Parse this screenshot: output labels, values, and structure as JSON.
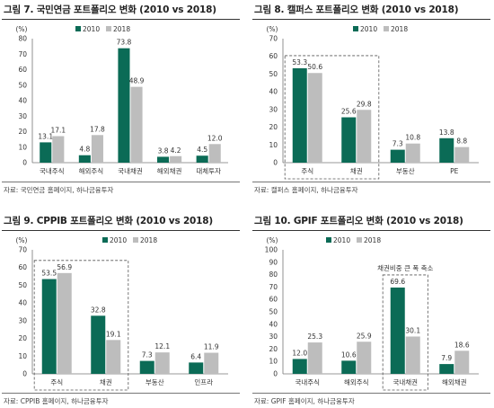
{
  "colors": {
    "s2010": "#0b6b56",
    "s2018": "#bdbdbd"
  },
  "chart_data": [
    {
      "type": "bar",
      "title": "그림 7. 국민연금 포트폴리오 변화 (2010 vs 2018)",
      "unit": "(%)",
      "source": "자료: 국민연금 홈페이지, 하나금융투자",
      "categories": [
        "국내주식",
        "해외주식",
        "국내채권",
        "해외채권",
        "대체투자"
      ],
      "ylim": [
        0,
        80
      ],
      "yticks": [
        0,
        10,
        20,
        30,
        40,
        50,
        60,
        70,
        80
      ],
      "series": [
        {
          "name": "2010",
          "values": [
            13.1,
            4.8,
            73.8,
            3.8,
            4.5
          ],
          "labels": [
            "13.1",
            "4.8",
            "73.8",
            "3.8",
            "4.5"
          ]
        },
        {
          "name": "2018",
          "values": [
            17.1,
            17.8,
            48.9,
            4.2,
            12.0
          ],
          "labels": [
            "17.1",
            "17.8",
            "48.9",
            "4.2",
            "12.0"
          ]
        }
      ],
      "legend_position": "top-center"
    },
    {
      "type": "bar",
      "title": "그림 8. 캘퍼스 포트폴리오 변화 (2010 vs 2018)",
      "unit": "(%)",
      "source": "자료: 캘퍼스 홈페이지, 하나금융투자",
      "categories": [
        "주식",
        "채권",
        "부동산",
        "PE"
      ],
      "ylim": [
        0,
        70
      ],
      "yticks": [
        0,
        10,
        20,
        30,
        40,
        50,
        60,
        70
      ],
      "series": [
        {
          "name": "2010",
          "values": [
            53.3,
            25.6,
            7.3,
            13.8
          ],
          "labels": [
            "53.3",
            "25.6",
            "7.3",
            "13.8"
          ]
        },
        {
          "name": "2018",
          "values": [
            50.6,
            29.8,
            10.8,
            8.8
          ],
          "labels": [
            "50.6",
            "29.8",
            "10.8",
            "8.8"
          ]
        }
      ],
      "highlight": [
        0,
        1
      ],
      "legend_position": "top-right"
    },
    {
      "type": "bar",
      "title": "그림 9. CPPIB 포트폴리오 변화 (2010 vs 2018)",
      "unit": "(%)",
      "source": "자료: CPPIB 홈페이지, 하나금융투자",
      "categories": [
        "주식",
        "채권",
        "부동산",
        "인프라"
      ],
      "ylim": [
        0,
        70
      ],
      "yticks": [
        0,
        10,
        20,
        30,
        40,
        50,
        60,
        70
      ],
      "series": [
        {
          "name": "2010",
          "values": [
            53.5,
            32.8,
            7.3,
            6.4
          ],
          "labels": [
            "53.5",
            "32.8",
            "7.3",
            "6.4"
          ]
        },
        {
          "name": "2018",
          "values": [
            56.9,
            19.1,
            12.1,
            11.9
          ],
          "labels": [
            "56.9",
            "19.1",
            "12.1",
            "11.9"
          ]
        }
      ],
      "highlight": [
        0,
        1
      ],
      "legend_position": "top-right"
    },
    {
      "type": "bar",
      "title": "그림 10. GPIF 포트폴리오 변화 (2010 vs 2018)",
      "unit": "(%)",
      "source": "자료: GPIF 홈페이지, 하나금융투자",
      "categories": [
        "국내주식",
        "해외주식",
        "국내채권",
        "해외채권"
      ],
      "ylim": [
        0,
        100
      ],
      "yticks": [
        0,
        10,
        20,
        30,
        40,
        50,
        60,
        70,
        80,
        90,
        100
      ],
      "series": [
        {
          "name": "2010",
          "values": [
            12.0,
            10.6,
            69.6,
            7.9
          ],
          "labels": [
            "12.0",
            "10.6",
            "69.6",
            "7.9"
          ]
        },
        {
          "name": "2018",
          "values": [
            25.3,
            25.9,
            30.1,
            18.6
          ],
          "labels": [
            "25.3",
            "25.9",
            "30.1",
            "18.6"
          ]
        }
      ],
      "highlight": [
        2,
        2
      ],
      "annotation": "채권비중 큰 폭 축소",
      "legend_position": "top-center"
    }
  ]
}
